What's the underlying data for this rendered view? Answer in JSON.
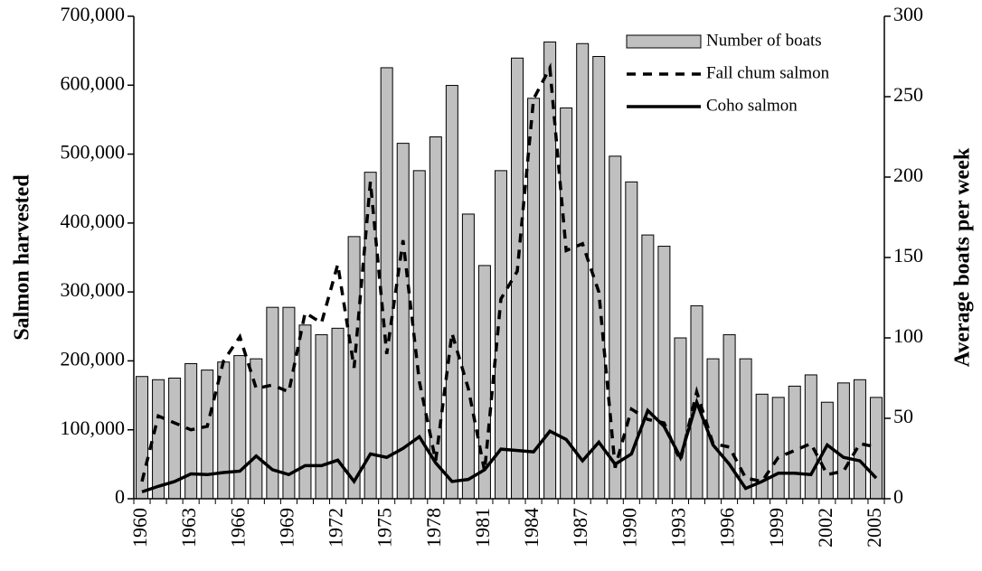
{
  "chart_data": {
    "type": "bar-line",
    "y_label": "Salmon harvested",
    "y2_label": "Average boats per week",
    "categories": [
      "1960",
      null,
      null,
      "1963",
      null,
      null,
      "1966",
      null,
      null,
      "1969",
      null,
      null,
      "1972",
      null,
      null,
      "1975",
      null,
      null,
      "1978",
      null,
      null,
      "1981",
      null,
      null,
      "1984",
      null,
      null,
      "1987",
      null,
      null,
      "1990",
      null,
      null,
      "1993",
      null,
      null,
      "1996",
      null,
      null,
      "1999",
      null,
      null,
      "2002",
      null,
      null,
      "2005"
    ],
    "ylim": [
      0,
      700000
    ],
    "yticks": [
      0,
      {
        "value": 100000,
        "label": "100,000"
      },
      {
        "value": 200000,
        "label": "200,000"
      },
      {
        "value": 300000,
        "label": "300,000"
      },
      {
        "value": 400000,
        "label": "400,000"
      },
      {
        "value": 500000,
        "label": "500,000"
      },
      {
        "value": 600000,
        "label": "600,000"
      },
      {
        "value": 700000,
        "label": "700,000"
      }
    ],
    "y2lim": [
      0,
      300
    ],
    "y2ticks": [
      0,
      50,
      100,
      150,
      200,
      250,
      300
    ],
    "legend": "upper right",
    "series": [
      {
        "name": "Number of boats",
        "type": "bar",
        "axis": "y2",
        "color": "#c0c0c0",
        "values": [
          76,
          74,
          75,
          84,
          80,
          85,
          89,
          87,
          119,
          119,
          108,
          102,
          106,
          163,
          203,
          268,
          221,
          204,
          225,
          257,
          177,
          145,
          204,
          274,
          249,
          284,
          243,
          283,
          275,
          213,
          197,
          164,
          157,
          100,
          120,
          87,
          102,
          87,
          65,
          63,
          70,
          77,
          60,
          72,
          74,
          63
        ]
      },
      {
        "name": "Fall chum salmon",
        "type": "line",
        "dash": "dashed",
        "color": "#000000",
        "values": [
          25000,
          120000,
          110000,
          100000,
          105000,
          200000,
          235000,
          160000,
          165000,
          155000,
          270000,
          255000,
          340000,
          190000,
          460000,
          210000,
          375000,
          170000,
          55000,
          240000,
          160000,
          40000,
          290000,
          330000,
          580000,
          625000,
          360000,
          370000,
          300000,
          45000,
          130000,
          115000,
          110000,
          55000,
          155000,
          80000,
          75000,
          30000,
          25000,
          60000,
          70000,
          80000,
          35000,
          40000,
          80000,
          75000
        ]
      },
      {
        "name": "Coho salmon",
        "type": "line",
        "dash": "solid",
        "color": "#000000",
        "values": [
          10000,
          18000,
          25000,
          36000,
          35000,
          38000,
          40000,
          62000,
          42000,
          35000,
          48000,
          48000,
          56000,
          25000,
          65000,
          60000,
          73000,
          90000,
          52000,
          25000,
          28000,
          42000,
          72000,
          70000,
          68000,
          98000,
          86000,
          55000,
          82000,
          50000,
          65000,
          128000,
          105000,
          60000,
          140000,
          78000,
          50000,
          15000,
          25000,
          37000,
          37000,
          35000,
          78000,
          60000,
          55000,
          30000
        ]
      }
    ]
  }
}
